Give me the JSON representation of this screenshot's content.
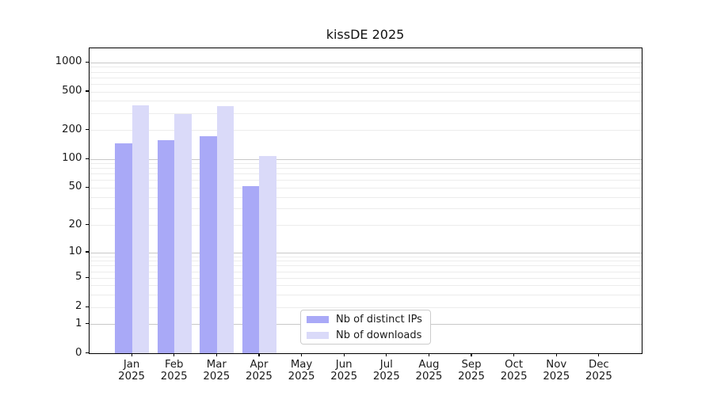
{
  "chart_data": {
    "type": "bar",
    "title": "kissDE 2025",
    "categories": [
      "Jan",
      "Feb",
      "Mar",
      "Apr",
      "May",
      "Jun",
      "Jul",
      "Aug",
      "Sep",
      "Oct",
      "Nov",
      "Dec"
    ],
    "category_year": "2025",
    "series": [
      {
        "name": "Nb of distinct IPs",
        "color": "#a9a9f7",
        "values": [
          145,
          157,
          171,
          52,
          null,
          null,
          null,
          null,
          null,
          null,
          null,
          null
        ]
      },
      {
        "name": "Nb of downloads",
        "color": "#dadaf9",
        "values": [
          362,
          291,
          350,
          107,
          null,
          null,
          null,
          null,
          null,
          null,
          null,
          null
        ]
      }
    ],
    "y_ticks": [
      0,
      1,
      2,
      5,
      10,
      20,
      50,
      100,
      200,
      500,
      1000
    ],
    "y_scale": "log1p",
    "ylim": [
      0,
      1390
    ],
    "xlabel": "",
    "ylabel": "",
    "grid": "horizontal",
    "legend_position": "bottom-center",
    "colors": {
      "grid_major": "#c8c8c8",
      "grid_minor": "#ececec",
      "axis": "#000000",
      "background": "#ffffff"
    }
  }
}
